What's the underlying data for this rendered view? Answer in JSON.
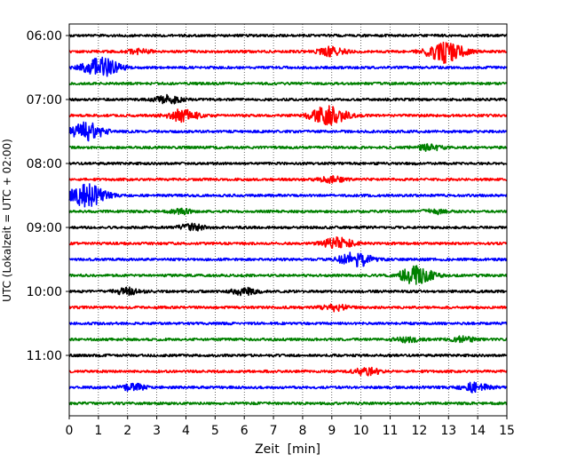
{
  "chart_data": {
    "type": "line",
    "chart_kind": "helicorder",
    "xlabel": "Zeit  [min]",
    "ylabel": "UTC (Lokalzeit = UTC + 02:00)",
    "xlim": [
      0,
      15
    ],
    "x_ticks": [
      0,
      1,
      2,
      3,
      4,
      5,
      6,
      7,
      8,
      9,
      10,
      11,
      12,
      13,
      14,
      15
    ],
    "y_ticks": [
      "06:00",
      "07:00",
      "08:00",
      "09:00",
      "10:00",
      "11:00"
    ],
    "grid": "vertical dotted at each minute",
    "trace_colors": [
      "#000000",
      "#ff0000",
      "#0000ff",
      "#008000"
    ],
    "traces": [
      {
        "start": "06:00",
        "color": "#000000",
        "events": []
      },
      {
        "start": "06:15",
        "color": "#ff0000",
        "events": [
          {
            "t": 12.9,
            "amp": 1.0
          },
          {
            "t": 9.0,
            "amp": 0.4
          },
          {
            "t": 2.4,
            "amp": 0.2
          }
        ]
      },
      {
        "start": "06:30",
        "color": "#0000ff",
        "events": [
          {
            "t": 1.1,
            "amp": 0.9
          }
        ]
      },
      {
        "start": "06:45",
        "color": "#008000",
        "events": []
      },
      {
        "start": "07:00",
        "color": "#000000",
        "events": [
          {
            "t": 3.4,
            "amp": 0.35
          }
        ]
      },
      {
        "start": "07:15",
        "color": "#ff0000",
        "events": [
          {
            "t": 3.9,
            "amp": 0.55
          },
          {
            "t": 8.9,
            "amp": 0.9
          }
        ]
      },
      {
        "start": "07:30",
        "color": "#0000ff",
        "events": [
          {
            "t": 0.6,
            "amp": 0.8
          }
        ]
      },
      {
        "start": "07:45",
        "color": "#008000",
        "events": [
          {
            "t": 12.3,
            "amp": 0.3
          }
        ]
      },
      {
        "start": "08:00",
        "color": "#000000",
        "events": []
      },
      {
        "start": "08:15",
        "color": "#ff0000",
        "events": [
          {
            "t": 9.0,
            "amp": 0.25
          }
        ]
      },
      {
        "start": "08:30",
        "color": "#0000ff",
        "events": [
          {
            "t": 0.6,
            "amp": 1.0
          }
        ]
      },
      {
        "start": "08:45",
        "color": "#008000",
        "events": [
          {
            "t": 3.9,
            "amp": 0.2
          },
          {
            "t": 12.5,
            "amp": 0.2
          }
        ]
      },
      {
        "start": "09:00",
        "color": "#000000",
        "events": [
          {
            "t": 4.2,
            "amp": 0.3
          }
        ]
      },
      {
        "start": "09:15",
        "color": "#ff0000",
        "events": [
          {
            "t": 9.2,
            "amp": 0.55
          }
        ]
      },
      {
        "start": "09:30",
        "color": "#0000ff",
        "events": [
          {
            "t": 9.8,
            "amp": 0.7
          }
        ]
      },
      {
        "start": "09:45",
        "color": "#008000",
        "events": [
          {
            "t": 11.9,
            "amp": 0.8
          }
        ]
      },
      {
        "start": "10:00",
        "color": "#000000",
        "events": [
          {
            "t": 2.0,
            "amp": 0.3
          },
          {
            "t": 6.0,
            "amp": 0.3
          }
        ]
      },
      {
        "start": "10:15",
        "color": "#ff0000",
        "events": [
          {
            "t": 9.1,
            "amp": 0.3
          }
        ]
      },
      {
        "start": "10:30",
        "color": "#0000ff",
        "events": []
      },
      {
        "start": "10:45",
        "color": "#008000",
        "events": [
          {
            "t": 11.6,
            "amp": 0.25
          },
          {
            "t": 13.5,
            "amp": 0.25
          }
        ]
      },
      {
        "start": "11:00",
        "color": "#000000",
        "events": []
      },
      {
        "start": "11:15",
        "color": "#ff0000",
        "events": [
          {
            "t": 10.2,
            "amp": 0.35
          }
        ]
      },
      {
        "start": "11:30",
        "color": "#0000ff",
        "events": [
          {
            "t": 2.2,
            "amp": 0.3
          },
          {
            "t": 13.9,
            "amp": 0.4
          }
        ]
      },
      {
        "start": "11:45",
        "color": "#008000",
        "events": []
      }
    ]
  }
}
